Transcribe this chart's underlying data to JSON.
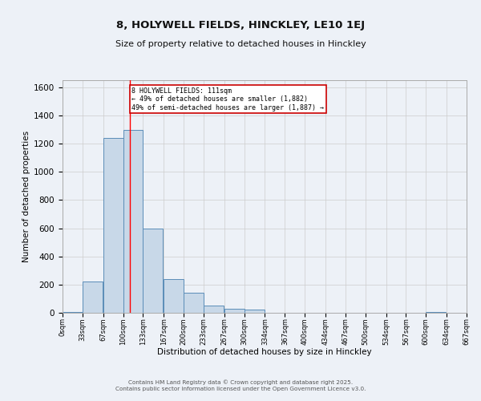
{
  "title": "8, HOLYWELL FIELDS, HINCKLEY, LE10 1EJ",
  "subtitle": "Size of property relative to detached houses in Hinckley",
  "xlabel": "Distribution of detached houses by size in Hinckley",
  "ylabel": "Number of detached properties",
  "footer_line1": "Contains HM Land Registry data © Crown copyright and database right 2025.",
  "footer_line2": "Contains public sector information licensed under the Open Government Licence v3.0.",
  "bar_edges": [
    0,
    33,
    67,
    100,
    133,
    167,
    200,
    233,
    267,
    300,
    334,
    367,
    400,
    434,
    467,
    500,
    534,
    567,
    600,
    634,
    667
  ],
  "bar_values": [
    5,
    220,
    1240,
    1300,
    600,
    240,
    140,
    50,
    28,
    25,
    0,
    0,
    0,
    0,
    0,
    0,
    0,
    0,
    8,
    0,
    0
  ],
  "bar_color": "#c8d8e8",
  "bar_edge_color": "#5b8db8",
  "grid_color": "#cccccc",
  "background_color": "#edf1f7",
  "property_size": 111,
  "red_line_x": 111,
  "annotation_text": "8 HOLYWELL FIELDS: 111sqm\n← 49% of detached houses are smaller (1,882)\n49% of semi-detached houses are larger (1,887) →",
  "annotation_box_color": "#ffffff",
  "annotation_box_edge_color": "#cc0000",
  "ylim": [
    0,
    1650
  ],
  "yticks": [
    0,
    200,
    400,
    600,
    800,
    1000,
    1200,
    1400,
    1600
  ],
  "tick_labels": [
    "0sqm",
    "33sqm",
    "67sqm",
    "100sqm",
    "133sqm",
    "167sqm",
    "200sqm",
    "233sqm",
    "267sqm",
    "300sqm",
    "334sqm",
    "367sqm",
    "400sqm",
    "434sqm",
    "467sqm",
    "500sqm",
    "534sqm",
    "567sqm",
    "600sqm",
    "634sqm",
    "667sqm"
  ]
}
